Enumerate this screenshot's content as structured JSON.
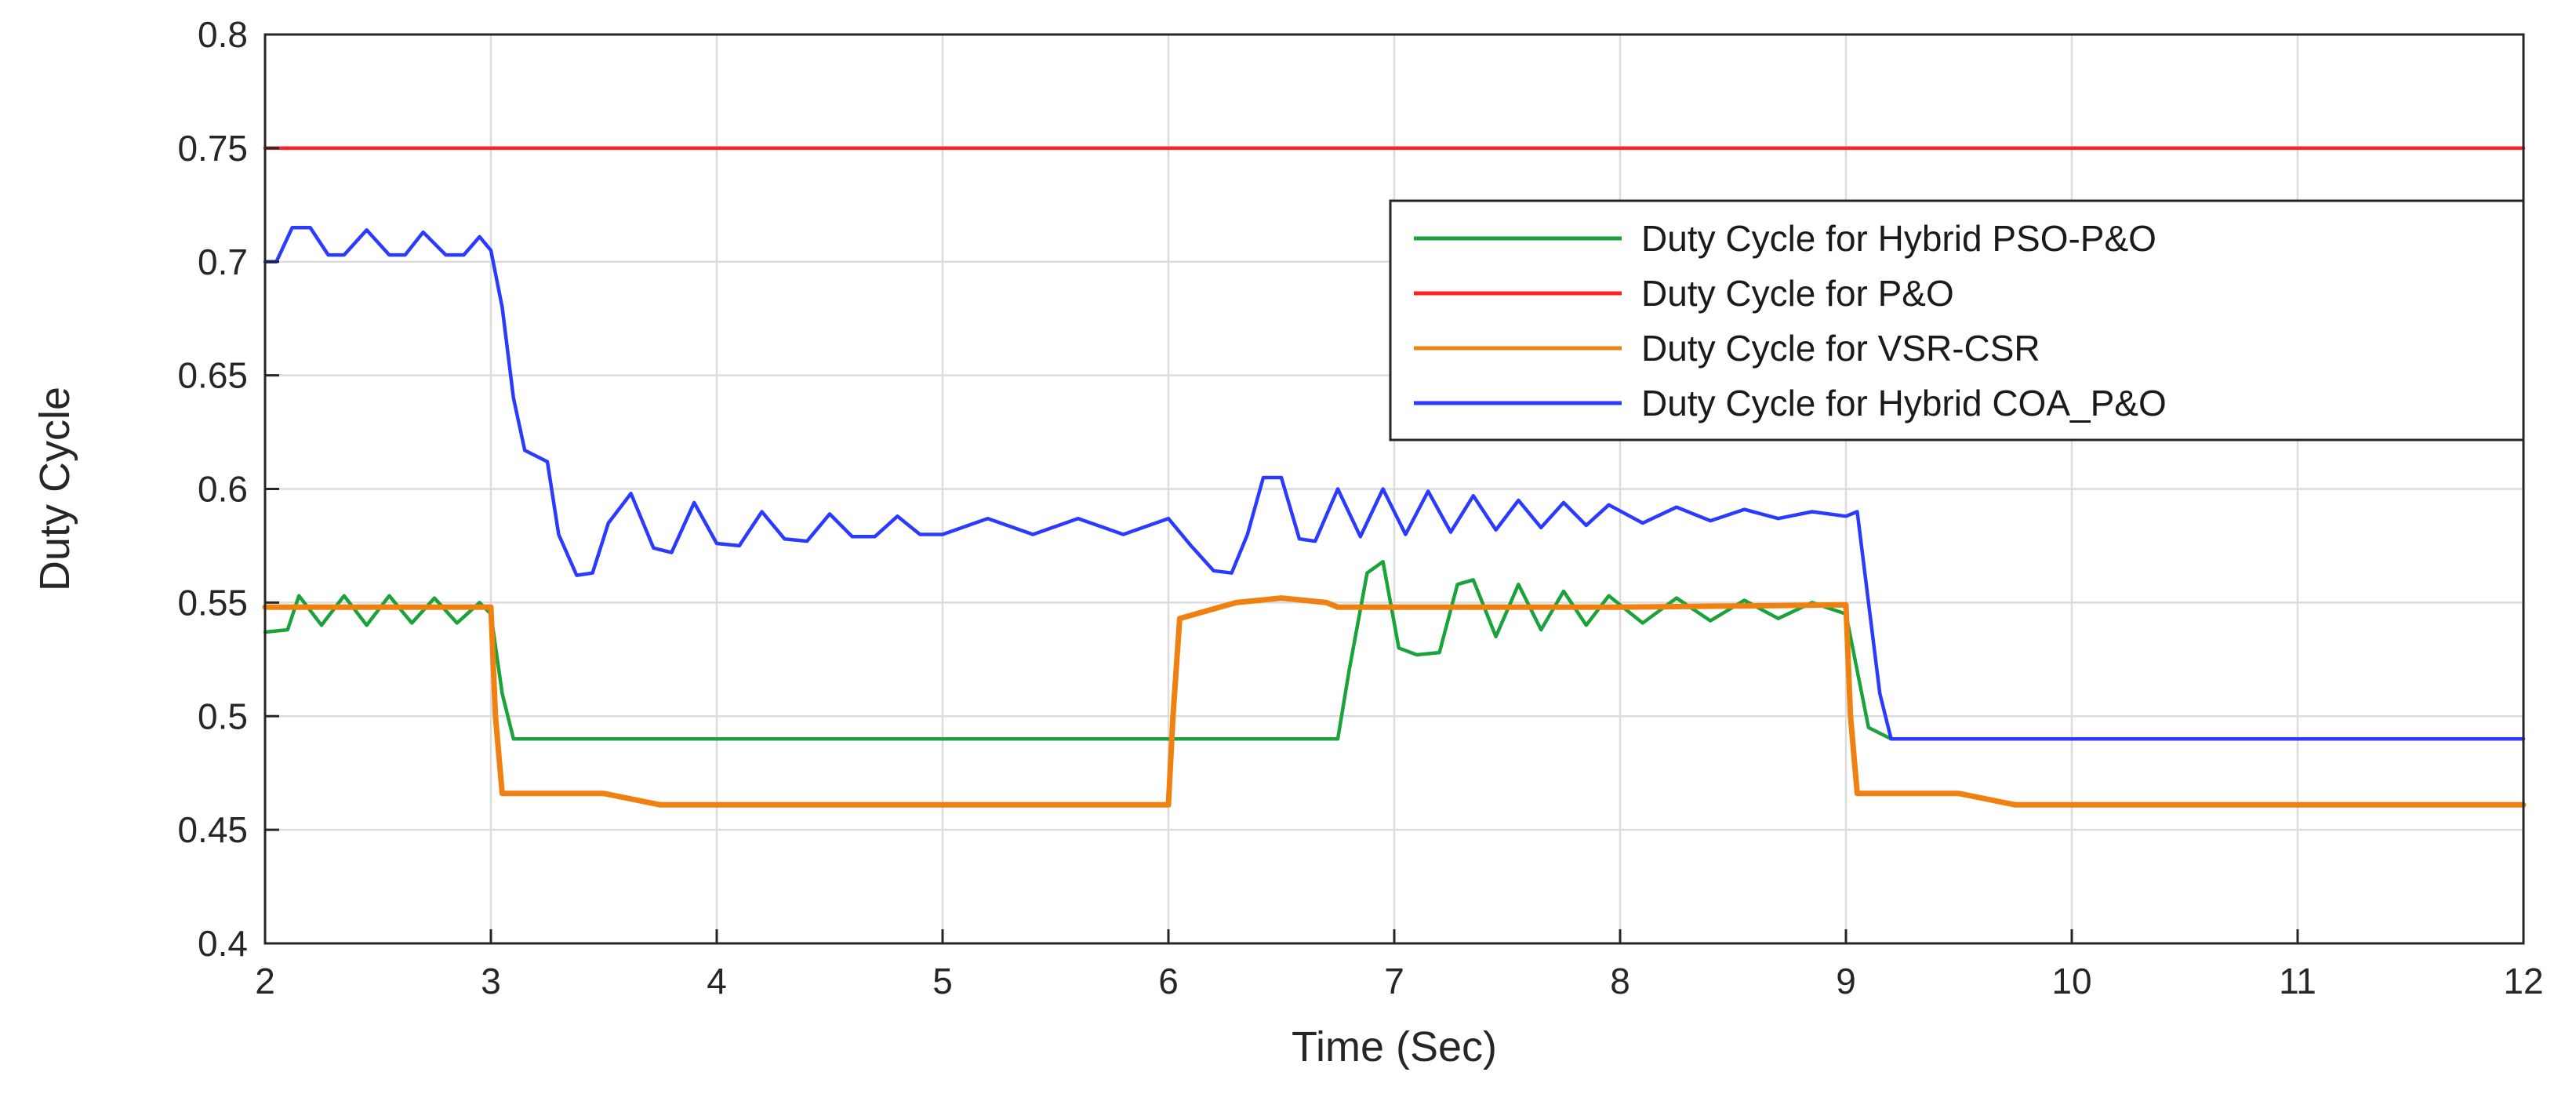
{
  "chart_data": {
    "type": "line",
    "title": "",
    "xlabel": "Time (Sec)",
    "ylabel": "Duty Cycle",
    "xlim": [
      2,
      12
    ],
    "ylim": [
      0.4,
      0.8
    ],
    "xticks": [
      2,
      3,
      4,
      5,
      6,
      7,
      8,
      9,
      10,
      11,
      12
    ],
    "yticks": [
      0.4,
      0.45,
      0.5,
      0.55,
      0.6,
      0.65,
      0.7,
      0.75,
      0.8
    ],
    "xtick_labels": [
      "2",
      "3",
      "4",
      "5",
      "6",
      "7",
      "8",
      "9",
      "10",
      "11",
      "12"
    ],
    "ytick_labels": [
      "0.4",
      "0.45",
      "0.5",
      "0.55",
      "0.6",
      "0.65",
      "0.7",
      "0.75",
      "0.8"
    ],
    "grid": true,
    "legend_position": "top-right",
    "series": [
      {
        "name": "Duty Cycle for Hybrid PSO-P&O",
        "color": "#1aa33a",
        "x": [
          2,
          2.1,
          2.15,
          2.25,
          2.35,
          2.45,
          2.55,
          2.65,
          2.75,
          2.85,
          2.95,
          3.0,
          3.05,
          3.1,
          3.2,
          4,
          5,
          6,
          6.75,
          6.8,
          6.88,
          6.95,
          7.02,
          7.1,
          7.2,
          7.28,
          7.35,
          7.45,
          7.55,
          7.65,
          7.75,
          7.85,
          7.95,
          8.1,
          8.25,
          8.4,
          8.55,
          8.7,
          8.85,
          9.0,
          9.05,
          9.1,
          9.2,
          9.5,
          10,
          11,
          12
        ],
        "y": [
          0.537,
          0.538,
          0.553,
          0.54,
          0.553,
          0.54,
          0.553,
          0.541,
          0.552,
          0.541,
          0.55,
          0.545,
          0.51,
          0.49,
          0.49,
          0.49,
          0.49,
          0.49,
          0.49,
          0.52,
          0.563,
          0.568,
          0.53,
          0.527,
          0.528,
          0.558,
          0.56,
          0.535,
          0.558,
          0.538,
          0.555,
          0.54,
          0.553,
          0.541,
          0.552,
          0.542,
          0.551,
          0.543,
          0.55,
          0.545,
          0.52,
          0.495,
          0.49,
          0.49,
          0.49,
          0.49,
          0.49
        ]
      },
      {
        "name": "Duty Cycle for P&O",
        "color": "#ff2020",
        "x": [
          2,
          12
        ],
        "y": [
          0.75,
          0.75
        ]
      },
      {
        "name": "Duty Cycle for VSR-CSR",
        "color": "#f08010",
        "x": [
          2,
          3.0,
          3.02,
          3.05,
          3.5,
          3.75,
          4,
          5,
          6.0,
          6.02,
          6.05,
          6.3,
          6.5,
          6.7,
          6.75,
          7,
          8,
          9.0,
          9.02,
          9.05,
          9.5,
          9.75,
          10,
          11,
          12
        ],
        "y": [
          0.548,
          0.548,
          0.5,
          0.466,
          0.466,
          0.461,
          0.461,
          0.461,
          0.461,
          0.5,
          0.543,
          0.55,
          0.552,
          0.55,
          0.548,
          0.548,
          0.548,
          0.549,
          0.5,
          0.466,
          0.466,
          0.461,
          0.461,
          0.461,
          0.461
        ]
      },
      {
        "name": "Duty Cycle for Hybrid COA_P&O",
        "color": "#2a3bff",
        "x": [
          2,
          2.05,
          2.12,
          2.2,
          2.28,
          2.35,
          2.45,
          2.55,
          2.62,
          2.7,
          2.8,
          2.88,
          2.95,
          3.0,
          3.05,
          3.1,
          3.15,
          3.25,
          3.3,
          3.38,
          3.45,
          3.52,
          3.62,
          3.72,
          3.8,
          3.9,
          4.0,
          4.1,
          4.2,
          4.3,
          4.4,
          4.5,
          4.6,
          4.7,
          4.8,
          4.9,
          5.0,
          5.2,
          5.4,
          5.6,
          5.8,
          6.0,
          6.1,
          6.2,
          6.28,
          6.35,
          6.42,
          6.5,
          6.58,
          6.65,
          6.75,
          6.85,
          6.95,
          7.05,
          7.15,
          7.25,
          7.35,
          7.45,
          7.55,
          7.65,
          7.75,
          7.85,
          7.95,
          8.1,
          8.25,
          8.4,
          8.55,
          8.7,
          8.85,
          9.0,
          9.05,
          9.1,
          9.15,
          9.2,
          9.5,
          10,
          11,
          12
        ],
        "y": [
          0.7,
          0.7,
          0.715,
          0.715,
          0.703,
          0.703,
          0.714,
          0.703,
          0.703,
          0.713,
          0.703,
          0.703,
          0.711,
          0.705,
          0.68,
          0.64,
          0.617,
          0.612,
          0.58,
          0.562,
          0.563,
          0.585,
          0.598,
          0.574,
          0.572,
          0.594,
          0.576,
          0.575,
          0.59,
          0.578,
          0.577,
          0.589,
          0.579,
          0.579,
          0.588,
          0.58,
          0.58,
          0.587,
          0.58,
          0.587,
          0.58,
          0.587,
          0.575,
          0.564,
          0.563,
          0.58,
          0.605,
          0.605,
          0.578,
          0.577,
          0.6,
          0.579,
          0.6,
          0.58,
          0.599,
          0.581,
          0.597,
          0.582,
          0.595,
          0.583,
          0.594,
          0.584,
          0.593,
          0.585,
          0.592,
          0.586,
          0.591,
          0.587,
          0.59,
          0.588,
          0.59,
          0.55,
          0.51,
          0.49,
          0.49,
          0.49,
          0.49,
          0.49
        ]
      }
    ]
  }
}
